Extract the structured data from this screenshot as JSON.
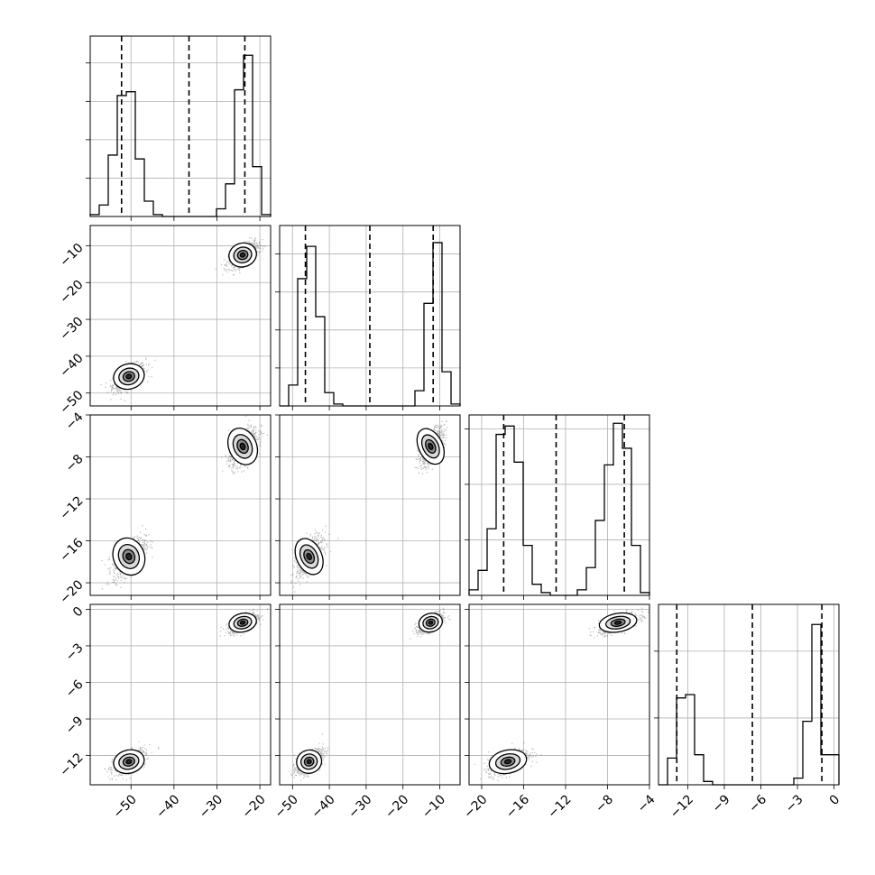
{
  "chart_data": {
    "type": "corner",
    "grid": true,
    "parameters": [
      {
        "range": [
          -59.5,
          -17.5
        ],
        "ticks": [
          -50,
          -40,
          -30,
          -20
        ],
        "tick_labels": [
          "−50",
          "−40",
          "−30",
          "−20"
        ],
        "quantiles": [
          -52.2,
          -36.5,
          -23.5
        ],
        "hist": {
          "edges_start": -59.5,
          "bin_width": 2.1,
          "counts": [
            0.05,
            0.3,
            1.6,
            3.15,
            3.25,
            1.5,
            0.4,
            0.05,
            0,
            0,
            0,
            0,
            0,
            0,
            0.2,
            0.85,
            3.3,
            4.2,
            1.3,
            0.05
          ],
          "ymax": 4.7,
          "y_ticks": [
            1,
            2,
            3,
            4
          ]
        }
      },
      {
        "range": [
          -53.5,
          -4.5
        ],
        "ticks": [
          -50,
          -40,
          -30,
          -20,
          -10
        ],
        "tick_labels": [
          "−50",
          "−40",
          "−30",
          "−20",
          "−10"
        ],
        "quantiles": [
          -46.5,
          -29.0,
          -11.8
        ],
        "hist": {
          "edges_start": -53.5,
          "bin_width": 2.45,
          "counts": [
            0,
            0.55,
            3.35,
            4.2,
            2.35,
            0.35,
            0.05,
            0,
            0,
            0,
            0,
            0,
            0,
            0,
            0,
            0.4,
            2.7,
            4.3,
            0.9,
            0.05
          ],
          "ymax": 4.75,
          "y_ticks": [
            1,
            2,
            3,
            4
          ]
        }
      },
      {
        "range": [
          -21.2,
          -4.0
        ],
        "ticks": [
          -20,
          -16,
          -12,
          -8,
          -4
        ],
        "tick_labels": [
          "−20",
          "−16",
          "−12",
          "−8",
          "−4"
        ],
        "quantiles": [
          -17.9,
          -12.9,
          -6.4
        ],
        "hist": {
          "edges_start": -21.2,
          "bin_width": 0.86,
          "counts": [
            0.1,
            0.45,
            1.2,
            2.9,
            3.05,
            2.4,
            0.9,
            0.2,
            0.05,
            0,
            0,
            0,
            0.1,
            0.5,
            1.35,
            2.35,
            3.1,
            2.65,
            0.9,
            0.05
          ],
          "ymax": 3.25,
          "y_ticks": [
            1,
            2,
            3
          ]
        }
      },
      {
        "range": [
          -14.4,
          0.4
        ],
        "ticks": [
          -12,
          -9,
          -6,
          -3,
          0
        ],
        "tick_labels": [
          "−12",
          "−9",
          "−6",
          "−3",
          "0"
        ],
        "quantiles": [
          -12.9,
          -6.7,
          -1.0
        ],
        "hist": {
          "edges_start": -14.4,
          "bin_width": 0.74,
          "counts": [
            0,
            0.4,
            1.3,
            1.35,
            0.45,
            0.05,
            0,
            0,
            0,
            0,
            0,
            0,
            0,
            0,
            0,
            0.1,
            0.95,
            2.4,
            0.45,
            0.45
          ],
          "ymax": 2.7,
          "y_ticks": [
            1,
            2
          ]
        }
      }
    ],
    "modes": [
      [
        -50.5,
        -45.5,
        -17.5,
        -12.5
      ],
      [
        -24.0,
        -12.5,
        -7.0,
        -1.1
      ]
    ],
    "widths": [
      [
        1.9,
        1.8,
        0.95,
        0.5
      ],
      [
        1.7,
        1.7,
        0.95,
        0.4
      ]
    ]
  }
}
